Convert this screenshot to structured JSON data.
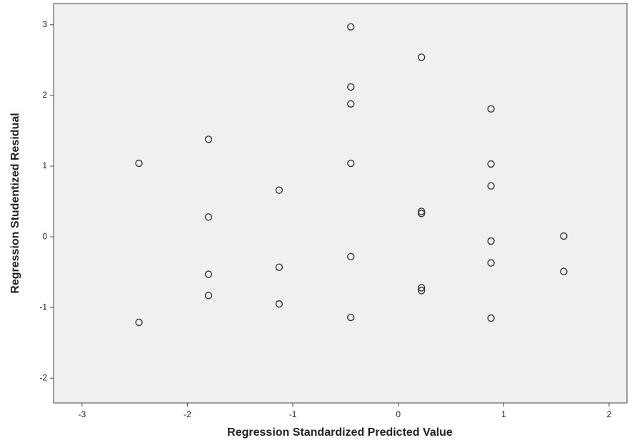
{
  "chart_data": {
    "type": "scatter",
    "x_label": "Regression Standardized Predicted Value",
    "y_label": "Regression Studentized Residual",
    "x": [
      -2.46,
      -2.46,
      -1.8,
      -1.8,
      -1.8,
      -1.8,
      -1.13,
      -1.13,
      -1.13,
      -0.45,
      -0.45,
      -0.45,
      -0.45,
      -0.45,
      -0.45,
      0.22,
      0.22,
      0.22,
      0.22,
      0.22,
      0.88,
      0.88,
      0.88,
      0.88,
      0.88,
      0.88,
      1.57,
      1.57
    ],
    "y": [
      1.04,
      -1.21,
      1.38,
      0.28,
      -0.53,
      -0.83,
      0.66,
      -0.43,
      -0.95,
      2.97,
      2.12,
      1.88,
      1.04,
      -0.28,
      -1.14,
      2.54,
      0.36,
      0.33,
      -0.72,
      -0.76,
      1.81,
      1.03,
      0.72,
      -0.06,
      -0.37,
      -1.15,
      0.01,
      -0.49
    ],
    "color": "#333333",
    "xlim": [
      -3.27,
      2.17
    ],
    "xticks": [
      -3,
      -2,
      -1,
      0,
      1,
      2
    ],
    "ylim": [
      -2.35,
      3.3
    ],
    "yticks": [
      -2,
      -1,
      0,
      1,
      2,
      3
    ],
    "grid": false
  }
}
